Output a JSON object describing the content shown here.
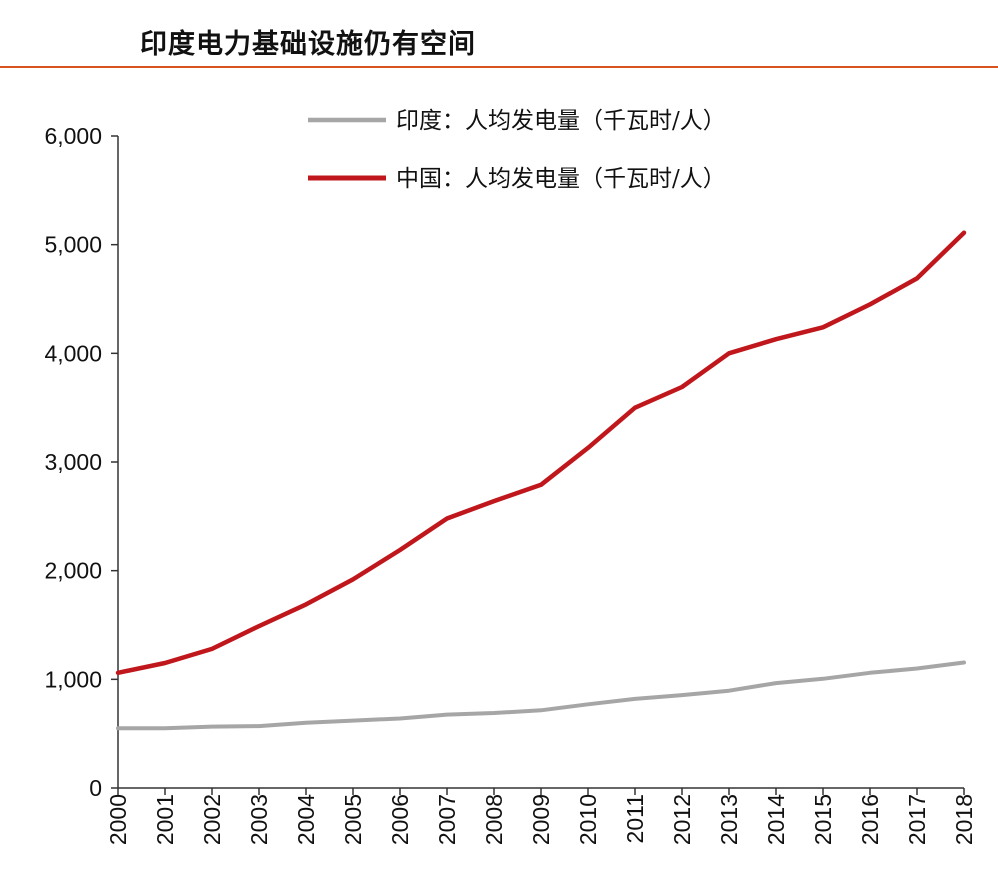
{
  "title": "印度电力基础设施仍有空间",
  "chart_data": {
    "type": "line",
    "title": "印度电力基础设施仍有空间",
    "xlabel": "",
    "ylabel": "",
    "x": [
      "2000",
      "2001",
      "2002",
      "2003",
      "2004",
      "2005",
      "2006",
      "2007",
      "2008",
      "2009",
      "2010",
      "2011",
      "2012",
      "2013",
      "2014",
      "2015",
      "2016",
      "2017",
      "2018"
    ],
    "ylim": [
      0,
      6000
    ],
    "yticks": [
      "0",
      "1,000",
      "2,000",
      "3,000",
      "4,000",
      "5,000",
      "6,000"
    ],
    "ytick_values": [
      0,
      1000,
      2000,
      3000,
      4000,
      5000,
      6000
    ],
    "grid": false,
    "legend_position": "top",
    "series": [
      {
        "name": "印度：人均发电量（千瓦时/人）",
        "color": "#a6a6a6",
        "values": [
          550,
          550,
          565,
          570,
          600,
          620,
          640,
          675,
          690,
          715,
          770,
          820,
          855,
          895,
          965,
          1005,
          1060,
          1100,
          1155
        ]
      },
      {
        "name": "中国：人均发电量（千瓦时/人）",
        "color": "#c0171c",
        "values": [
          1060,
          1150,
          1280,
          1490,
          1690,
          1920,
          2190,
          2480,
          2640,
          2790,
          3130,
          3500,
          3690,
          4000,
          4130,
          4240,
          4450,
          4690,
          5110
        ]
      }
    ]
  }
}
